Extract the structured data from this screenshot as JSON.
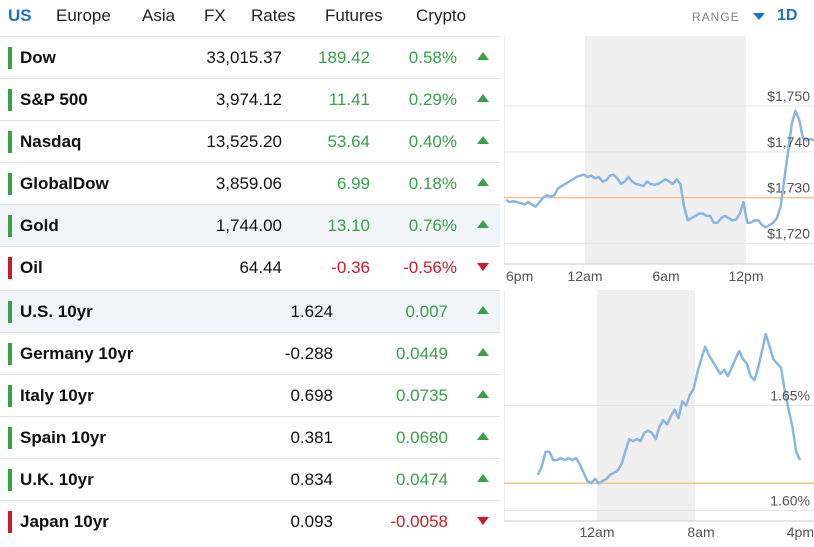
{
  "tabs": [
    "US",
    "Europe",
    "Asia",
    "FX",
    "Rates",
    "Futures",
    "Crypto"
  ],
  "range": {
    "label": "RANGE",
    "value": "1D"
  },
  "colors": {
    "up": "#3aa04a",
    "down": "#c81e2c",
    "line": "#8ab6e0",
    "accent": "#1a73c8",
    "baseline": "#f2c48a"
  },
  "indices": [
    {
      "name": "Dow",
      "last": "33,015.37",
      "change": "189.42",
      "pct": "0.58%",
      "dir": "up"
    },
    {
      "name": "S&P 500",
      "last": "3,974.12",
      "change": "11.41",
      "pct": "0.29%",
      "dir": "up"
    },
    {
      "name": "Nasdaq",
      "last": "13,525.20",
      "change": "53.64",
      "pct": "0.40%",
      "dir": "up"
    },
    {
      "name": "GlobalDow",
      "last": "3,859.06",
      "change": "6.99",
      "pct": "0.18%",
      "dir": "up"
    },
    {
      "name": "Gold",
      "last": "1,744.00",
      "change": "13.10",
      "pct": "0.76%",
      "dir": "up"
    },
    {
      "name": "Oil",
      "last": "64.44",
      "change": "-0.36",
      "pct": "-0.56%",
      "dir": "down"
    }
  ],
  "bonds": [
    {
      "name": "U.S. 10yr",
      "yield": "1.624",
      "change": "0.007",
      "dir": "up"
    },
    {
      "name": "Germany 10yr",
      "yield": "-0.288",
      "change": "0.0449",
      "dir": "up"
    },
    {
      "name": "Italy 10yr",
      "yield": "0.698",
      "change": "0.0735",
      "dir": "up"
    },
    {
      "name": "Spain 10yr",
      "yield": "0.381",
      "change": "0.0680",
      "dir": "up"
    },
    {
      "name": "U.K. 10yr",
      "yield": "0.834",
      "change": "0.0474",
      "dir": "up"
    },
    {
      "name": "Japan 10yr",
      "yield": "0.093",
      "change": "-0.0058",
      "dir": "down"
    }
  ],
  "chart_data": [
    {
      "type": "line",
      "ylim": [
        1717,
        1752
      ],
      "y_ticks": [
        "$1,750",
        "$1,740",
        "$1,730",
        "$1,720"
      ],
      "x_ticks": [
        "6pm",
        "12am",
        "6am",
        "12pm"
      ],
      "baseline": 1730,
      "series": [
        {
          "values": [
            1729.5,
            1729,
            1729.2,
            1729,
            1728.8,
            1728.5,
            1729,
            1728.5,
            1728,
            1729,
            1730,
            1730.5,
            1730.2,
            1730.5,
            1732,
            1732.5,
            1733,
            1733.5,
            1734,
            1734.5,
            1734.8,
            1735,
            1734.5,
            1734.8,
            1734.2,
            1734.5,
            1733.5,
            1733.8,
            1734.8,
            1735,
            1734.2,
            1733,
            1733.5,
            1734.5,
            1733.5,
            1733,
            1732.8,
            1732.5,
            1733.5,
            1733,
            1732.8,
            1733,
            1733.5,
            1734,
            1733.5,
            1733,
            1734,
            1733,
            1728,
            1725,
            1725.5,
            1726,
            1726.5,
            1726.5,
            1726,
            1726,
            1724.5,
            1724.5,
            1725.5,
            1726,
            1725.5,
            1725,
            1725.2,
            1726.5,
            1729,
            1724.5,
            1724.5,
            1725,
            1725,
            1724,
            1723.5,
            1724,
            1724.5,
            1725.5,
            1728,
            1734,
            1740,
            1746,
            1749,
            1747,
            1743,
            1742.5,
            1742.8,
            1742.5
          ]
        }
      ]
    },
    {
      "type": "line",
      "ylim": [
        1.595,
        1.685
      ],
      "y_ticks": [
        "1.65%",
        "1.60%"
      ],
      "x_ticks": [
        "12am",
        "8am",
        "4pm"
      ],
      "baseline": 1.613,
      "series": [
        {
          "values": [
            1.617,
            1.621,
            1.628,
            1.628,
            1.624,
            1.624,
            1.625,
            1.624,
            1.625,
            1.624,
            1.625,
            1.622,
            1.618,
            1.614,
            1.613,
            1.615,
            1.613,
            1.614,
            1.615,
            1.617,
            1.618,
            1.619,
            1.622,
            1.628,
            1.634,
            1.633,
            1.634,
            1.633,
            1.637,
            1.638,
            1.637,
            1.634,
            1.64,
            1.643,
            1.641,
            1.645,
            1.648,
            1.644,
            1.652,
            1.65,
            1.655,
            1.658,
            1.666,
            1.672,
            1.678,
            1.674,
            1.671,
            1.668,
            1.665,
            1.667,
            1.664,
            1.668,
            1.672,
            1.676,
            1.672,
            1.67,
            1.664,
            1.662,
            1.668,
            1.676,
            1.684,
            1.678,
            1.672,
            1.67,
            1.668,
            1.657,
            1.648,
            1.64,
            1.628,
            1.624
          ]
        }
      ]
    }
  ]
}
